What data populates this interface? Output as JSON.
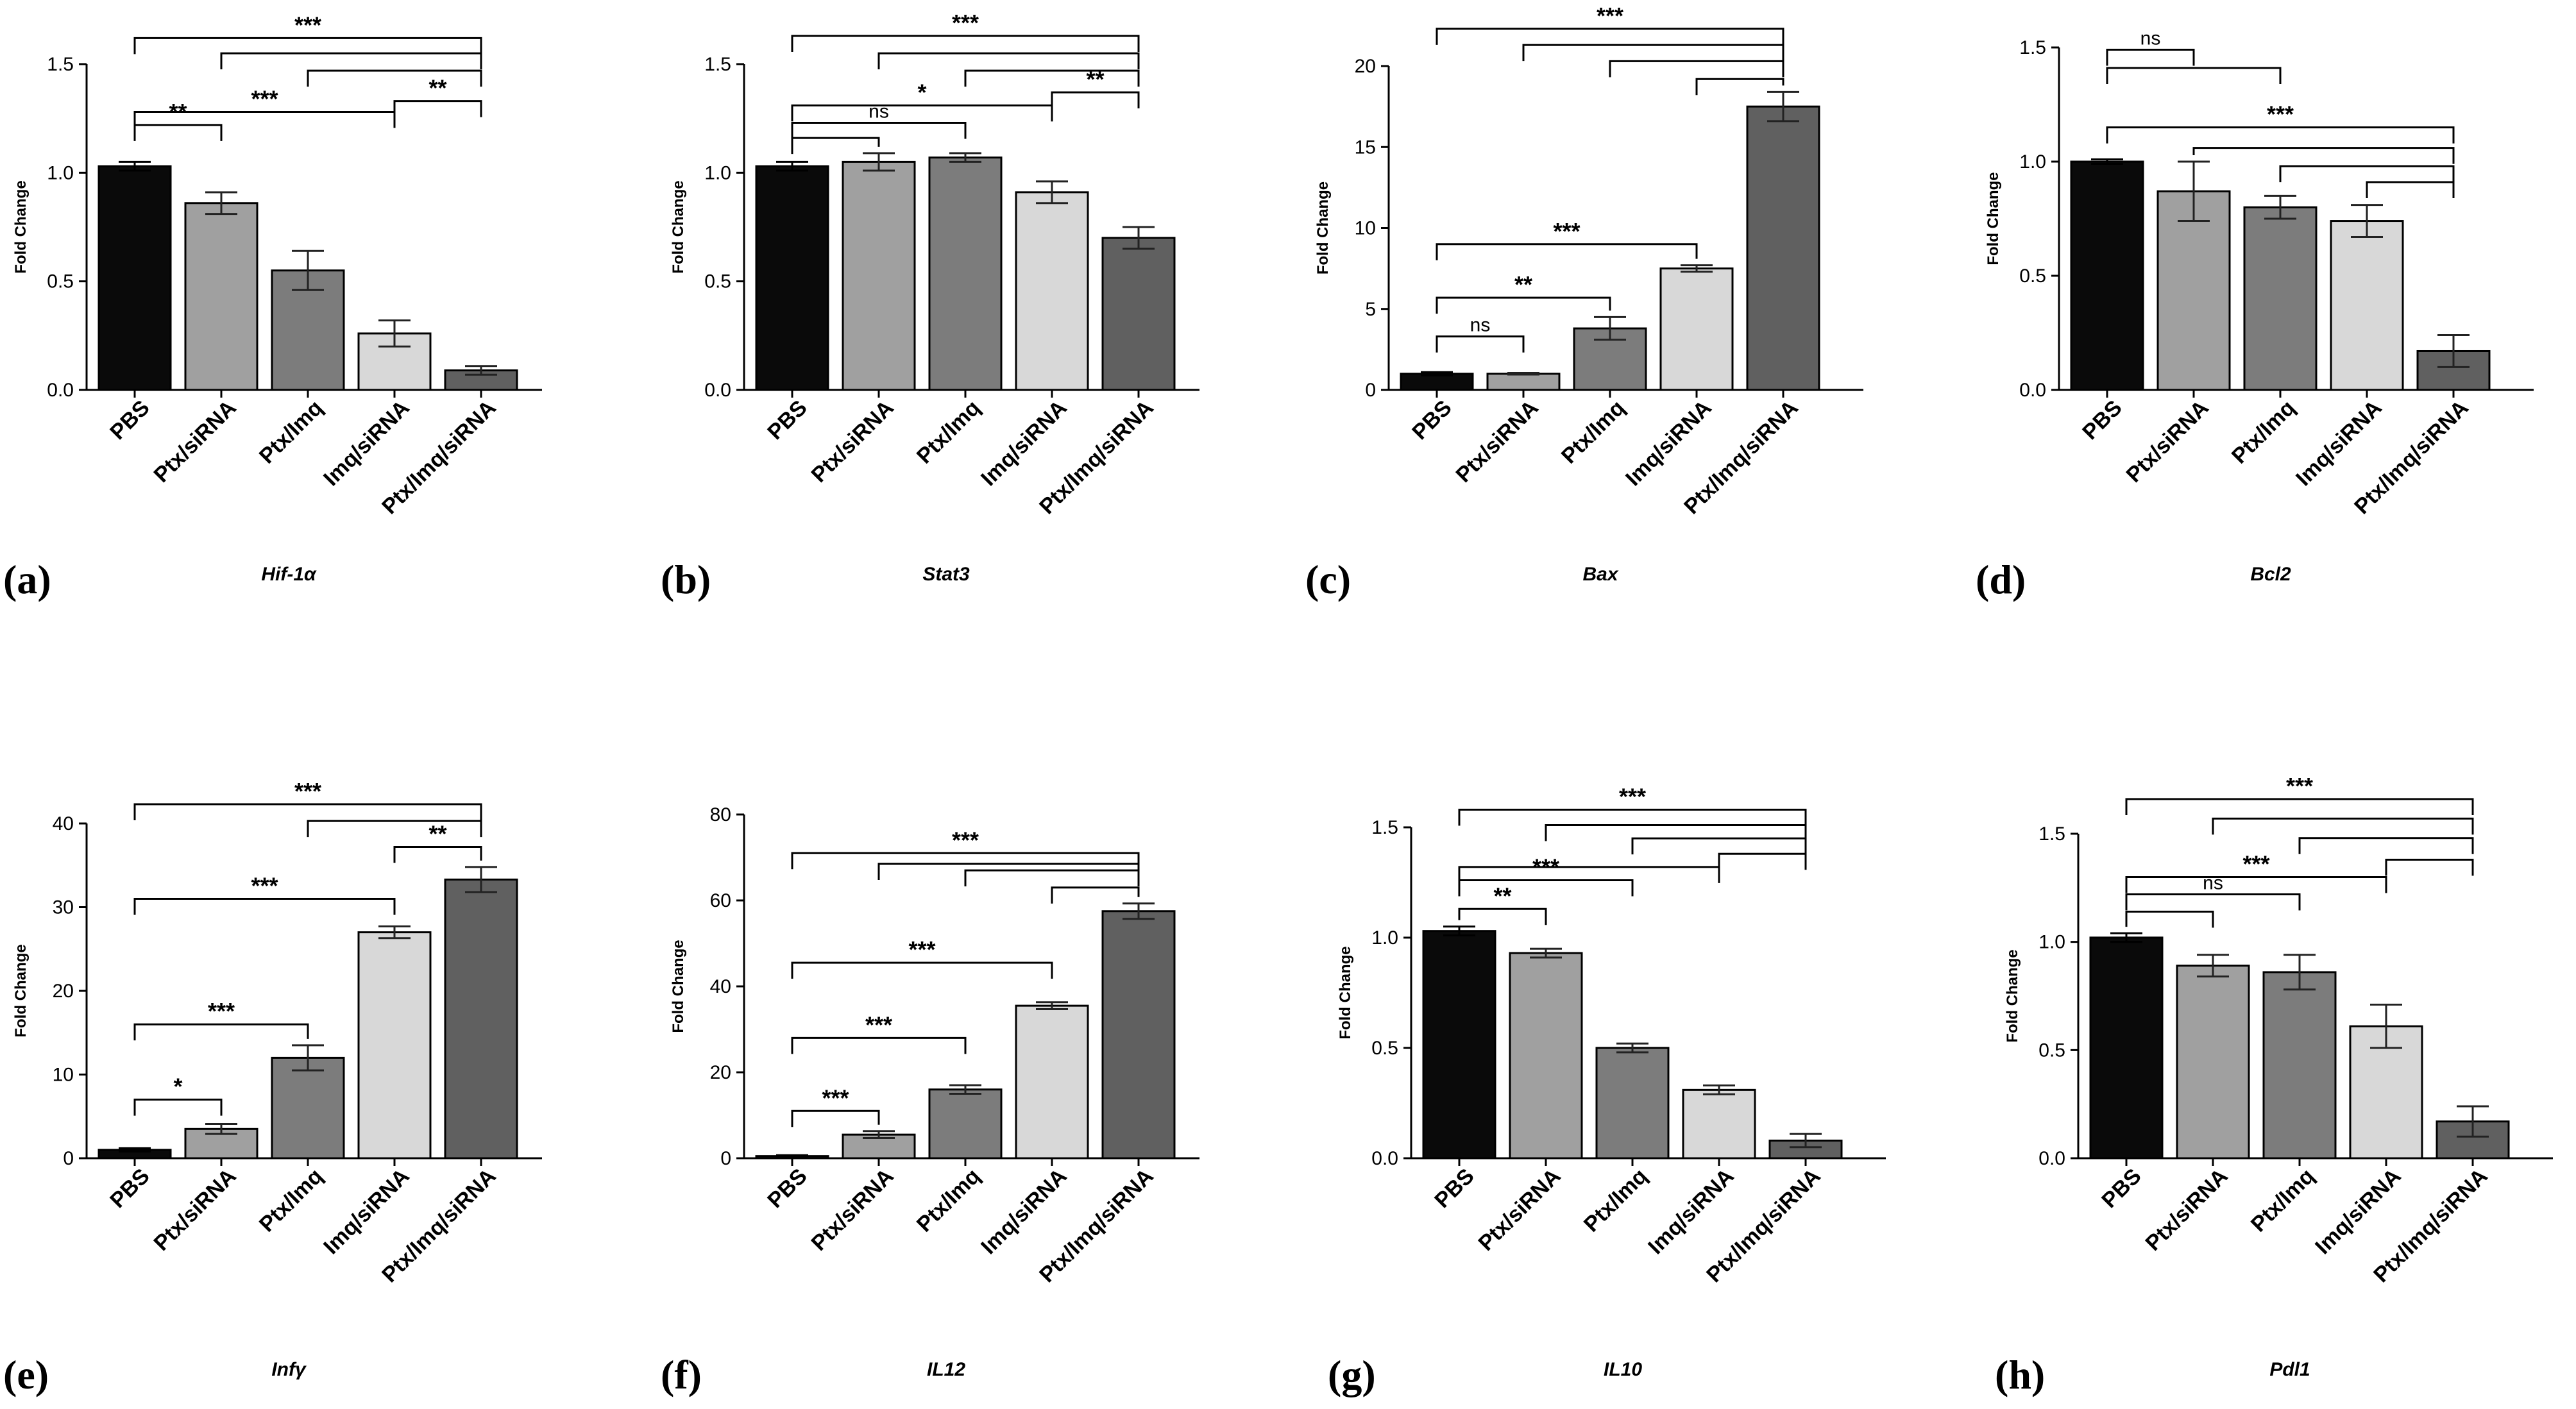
{
  "categories": [
    "PBS",
    "Ptx/siRNA",
    "Ptx/Imq",
    "Imq/siRNA",
    "Ptx/Imq/siRNA"
  ],
  "bar_colors": [
    "#0a0a0a",
    "#a0a0a0",
    "#7c7c7c",
    "#d8d8d8",
    "#606060"
  ],
  "chart_data": [
    {
      "type": "bar",
      "panel": "(a)",
      "title": "Hif-1α",
      "ylabel": "Fold Change",
      "ylim": [
        0,
        1.5
      ],
      "yticks": [
        "0.0",
        "0.5",
        "1.0",
        "1.5"
      ],
      "values": [
        1.03,
        0.86,
        0.55,
        0.26,
        0.09
      ],
      "errors": [
        0.02,
        0.05,
        0.09,
        0.06,
        0.02
      ],
      "brackets": [
        {
          "from": 0,
          "to": 1,
          "y": 1.22,
          "label": "**"
        },
        {
          "from": 0,
          "to": 3,
          "y": 1.28,
          "label": "***"
        },
        {
          "from": 3,
          "to": 4,
          "y": 1.33,
          "label": "**"
        },
        {
          "from": 2,
          "to": 4,
          "y": 1.47,
          "label": ""
        },
        {
          "from": 1,
          "to": 4,
          "y": 1.55,
          "label": ""
        },
        {
          "from": 0,
          "to": 4,
          "y": 1.62,
          "label": "***"
        }
      ]
    },
    {
      "type": "bar",
      "panel": "(b)",
      "title": "Stat3",
      "ylabel": "Fold Change",
      "ylim": [
        0,
        1.5
      ],
      "yticks": [
        "0.0",
        "0.5",
        "1.0",
        "1.5"
      ],
      "values": [
        1.03,
        1.05,
        1.07,
        0.91,
        0.7
      ],
      "errors": [
        0.02,
        0.04,
        0.02,
        0.05,
        0.05
      ],
      "brackets": [
        {
          "from": 0,
          "to": 1,
          "y": 1.16,
          "label": ""
        },
        {
          "from": 0,
          "to": 2,
          "y": 1.23,
          "label": "ns"
        },
        {
          "from": 0,
          "to": 3,
          "y": 1.31,
          "label": "*"
        },
        {
          "from": 3,
          "to": 4,
          "y": 1.37,
          "label": "**"
        },
        {
          "from": 2,
          "to": 4,
          "y": 1.47,
          "label": ""
        },
        {
          "from": 1,
          "to": 4,
          "y": 1.55,
          "label": ""
        },
        {
          "from": 0,
          "to": 4,
          "y": 1.63,
          "label": "***"
        }
      ]
    },
    {
      "type": "bar",
      "panel": "(c)",
      "title": "Bax",
      "ylabel": "Fold Change",
      "ylim": [
        0,
        20
      ],
      "yticks": [
        "0",
        "5",
        "10",
        "15",
        "20"
      ],
      "values": [
        1.0,
        1.0,
        3.8,
        7.5,
        17.5
      ],
      "errors": [
        0.1,
        0.05,
        0.7,
        0.2,
        0.9
      ],
      "brackets": [
        {
          "from": 0,
          "to": 1,
          "y": 3.3,
          "label": "ns"
        },
        {
          "from": 0,
          "to": 2,
          "y": 5.7,
          "label": "**"
        },
        {
          "from": 0,
          "to": 3,
          "y": 9.0,
          "label": "***"
        },
        {
          "from": 3,
          "to": 4,
          "y": 19.2,
          "label": ""
        },
        {
          "from": 2,
          "to": 4,
          "y": 20.3,
          "label": ""
        },
        {
          "from": 1,
          "to": 4,
          "y": 21.3,
          "label": ""
        },
        {
          "from": 0,
          "to": 4,
          "y": 22.3,
          "label": "***"
        }
      ]
    },
    {
      "type": "bar",
      "panel": "(d)",
      "title": "Bcl2",
      "ylabel": "Fold Change",
      "ylim": [
        0,
        1.5
      ],
      "yticks": [
        "0.0",
        "0.5",
        "1.0",
        "1.5"
      ],
      "values": [
        1.0,
        0.87,
        0.8,
        0.74,
        0.17
      ],
      "errors": [
        0.01,
        0.13,
        0.05,
        0.07,
        0.07
      ],
      "brackets": [
        {
          "from": 0,
          "to": 1,
          "y": 1.49,
          "label": "ns"
        },
        {
          "from": 0,
          "to": 2,
          "y": 1.41,
          "label": ""
        },
        {
          "from": 0,
          "to": 4,
          "y": 1.15,
          "label": "***"
        },
        {
          "from": 1,
          "to": 4,
          "y": 1.06,
          "label": ""
        },
        {
          "from": 2,
          "to": 4,
          "y": 0.98,
          "label": ""
        },
        {
          "from": 3,
          "to": 4,
          "y": 0.91,
          "label": ""
        }
      ]
    },
    {
      "type": "bar",
      "panel": "(e)",
      "title": "Infγ",
      "ylabel": "Fold Change",
      "ylim": [
        0,
        40
      ],
      "yticks": [
        "0",
        "10",
        "20",
        "30",
        "40"
      ],
      "values": [
        1.0,
        3.5,
        12.0,
        27.0,
        33.3
      ],
      "errors": [
        0.2,
        0.6,
        1.5,
        0.7,
        1.5
      ],
      "brackets": [
        {
          "from": 0,
          "to": 1,
          "y": 7.0,
          "label": "*"
        },
        {
          "from": 0,
          "to": 2,
          "y": 16.0,
          "label": "***"
        },
        {
          "from": 0,
          "to": 3,
          "y": 31.0,
          "label": "***"
        },
        {
          "from": 3,
          "to": 4,
          "y": 37.2,
          "label": "**"
        },
        {
          "from": 2,
          "to": 4,
          "y": 40.3,
          "label": ""
        },
        {
          "from": 0,
          "to": 4,
          "y": 42.3,
          "label": "***"
        }
      ]
    },
    {
      "type": "bar",
      "panel": "(f)",
      "title": "IL12",
      "ylabel": "Fold Change",
      "ylim": [
        0,
        80
      ],
      "yticks": [
        "0",
        "20",
        "40",
        "60",
        "80"
      ],
      "values": [
        0.5,
        5.5,
        16.0,
        35.5,
        57.5
      ],
      "errors": [
        0.2,
        0.8,
        1.0,
        0.8,
        1.8
      ],
      "brackets": [
        {
          "from": 0,
          "to": 1,
          "y": 11.0,
          "label": "***"
        },
        {
          "from": 0,
          "to": 2,
          "y": 28.0,
          "label": "***"
        },
        {
          "from": 0,
          "to": 3,
          "y": 45.5,
          "label": "***"
        },
        {
          "from": 3,
          "to": 4,
          "y": 63.0,
          "label": ""
        },
        {
          "from": 2,
          "to": 4,
          "y": 67.0,
          "label": ""
        },
        {
          "from": 1,
          "to": 4,
          "y": 68.5,
          "label": ""
        },
        {
          "from": 0,
          "to": 4,
          "y": 71.0,
          "label": "***"
        }
      ]
    },
    {
      "type": "bar",
      "panel": "(g)",
      "title": "IL10",
      "ylabel": "Fold Change",
      "ylim": [
        0,
        1.5
      ],
      "yticks": [
        "0.0",
        "0.5",
        "1.0",
        "1.5"
      ],
      "values": [
        1.03,
        0.93,
        0.5,
        0.31,
        0.08
      ],
      "errors": [
        0.02,
        0.02,
        0.02,
        0.02,
        0.03
      ],
      "brackets": [
        {
          "from": 0,
          "to": 1,
          "y": 1.13,
          "label": "**"
        },
        {
          "from": 0,
          "to": 2,
          "y": 1.26,
          "label": "***"
        },
        {
          "from": 0,
          "to": 3,
          "y": 1.32,
          "label": ""
        },
        {
          "from": 3,
          "to": 4,
          "y": 1.38,
          "label": ""
        },
        {
          "from": 2,
          "to": 4,
          "y": 1.45,
          "label": ""
        },
        {
          "from": 1,
          "to": 4,
          "y": 1.51,
          "label": ""
        },
        {
          "from": 0,
          "to": 4,
          "y": 1.58,
          "label": "***"
        }
      ]
    },
    {
      "type": "bar",
      "panel": "(h)",
      "title": "Pdl1",
      "ylabel": "Fold Change",
      "ylim": [
        0,
        1.5
      ],
      "yticks": [
        "0.0",
        "0.5",
        "1.0",
        "1.5"
      ],
      "values": [
        1.02,
        0.89,
        0.86,
        0.61,
        0.17
      ],
      "errors": [
        0.02,
        0.05,
        0.08,
        0.1,
        0.07
      ],
      "brackets": [
        {
          "from": 0,
          "to": 1,
          "y": 1.14,
          "label": ""
        },
        {
          "from": 0,
          "to": 2,
          "y": 1.22,
          "label": "ns"
        },
        {
          "from": 0,
          "to": 3,
          "y": 1.3,
          "label": "***"
        },
        {
          "from": 3,
          "to": 4,
          "y": 1.38,
          "label": ""
        },
        {
          "from": 2,
          "to": 4,
          "y": 1.48,
          "label": ""
        },
        {
          "from": 1,
          "to": 4,
          "y": 1.57,
          "label": ""
        },
        {
          "from": 0,
          "to": 4,
          "y": 1.66,
          "label": "***"
        }
      ]
    }
  ]
}
